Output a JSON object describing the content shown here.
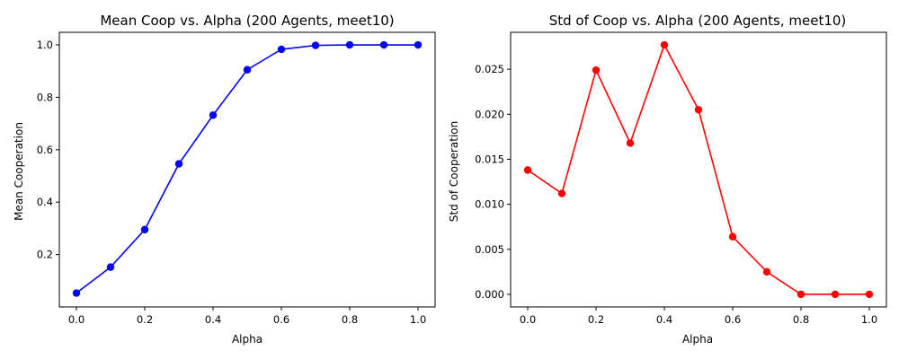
{
  "chart_data": [
    {
      "type": "line",
      "title": "Mean Coop vs. Alpha (200 Agents, meet10)",
      "xlabel": "Alpha",
      "ylabel": "Mean Cooperation",
      "color": "#0000ff",
      "x": [
        0.0,
        0.1,
        0.2,
        0.3,
        0.4,
        0.5,
        0.6,
        0.7,
        0.8,
        0.9,
        1.0
      ],
      "y": [
        0.053,
        0.152,
        0.295,
        0.546,
        0.732,
        0.905,
        0.983,
        0.998,
        1.0,
        1.0,
        1.0
      ],
      "xlim": [
        -0.05,
        1.05
      ],
      "ylim": [
        0.0,
        1.048
      ],
      "xticks": [
        0.0,
        0.2,
        0.4,
        0.6,
        0.8,
        1.0
      ],
      "xtick_labels": [
        "0.0",
        "0.2",
        "0.4",
        "0.6",
        "0.8",
        "1.0"
      ],
      "yticks": [
        0.2,
        0.4,
        0.6,
        0.8,
        1.0
      ],
      "ytick_labels": [
        "0.2",
        "0.4",
        "0.6",
        "0.8",
        "1.0"
      ],
      "grid": false,
      "marker": "circle"
    },
    {
      "type": "line",
      "title": "Std of Coop vs. Alpha (200 Agents, meet10)",
      "xlabel": "Alpha",
      "ylabel": "Std of Cooperation",
      "color": "#ff0000",
      "x": [
        0.0,
        0.1,
        0.2,
        0.3,
        0.4,
        0.5,
        0.6,
        0.7,
        0.8,
        0.9,
        1.0
      ],
      "y": [
        0.0138,
        0.0112,
        0.0249,
        0.0168,
        0.0277,
        0.0205,
        0.0064,
        0.0025,
        0.0,
        0.0,
        0.0
      ],
      "xlim": [
        -0.05,
        1.05
      ],
      "ylim": [
        -0.0014,
        0.0291
      ],
      "xticks": [
        0.0,
        0.2,
        0.4,
        0.6,
        0.8,
        1.0
      ],
      "xtick_labels": [
        "0.0",
        "0.2",
        "0.4",
        "0.6",
        "0.8",
        "1.0"
      ],
      "yticks": [
        0.0,
        0.005,
        0.01,
        0.015,
        0.02,
        0.025
      ],
      "ytick_labels": [
        "0.000",
        "0.005",
        "0.010",
        "0.015",
        "0.020",
        "0.025"
      ],
      "grid": false,
      "marker": "circle"
    }
  ]
}
